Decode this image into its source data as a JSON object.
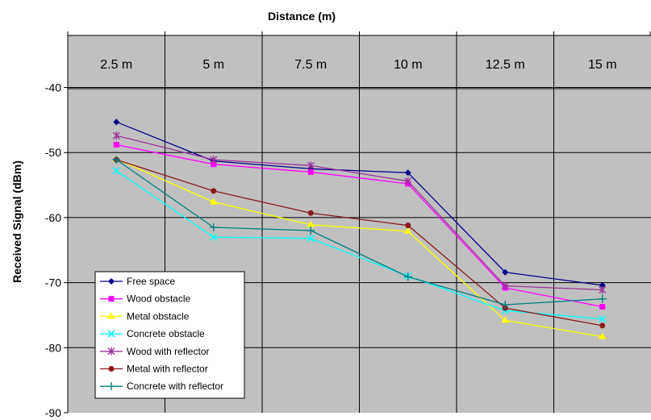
{
  "chart_data": {
    "type": "line",
    "title": "Distance (m)",
    "xlabel": "",
    "ylabel": "Received Signal (dBm)",
    "categories": [
      "2.5 m",
      "5 m",
      "7.5 m",
      "10 m",
      "12.5 m",
      "15 m"
    ],
    "ylim": [
      -90,
      -32
    ],
    "yticks": [
      -40,
      -50,
      -60,
      -70,
      -80,
      -90
    ],
    "grid": true,
    "legend": "bottom-left",
    "series": [
      {
        "name": "Free space",
        "color": "#00008B",
        "marker": "diamond",
        "values": [
          -45.3,
          -51.3,
          -52.5,
          -53.1,
          -68.4,
          -70.4
        ]
      },
      {
        "name": "Wood obstacle",
        "color": "#FF00FF",
        "marker": "square",
        "values": [
          -48.8,
          -51.8,
          -53.0,
          -54.8,
          -70.8,
          -73.7
        ]
      },
      {
        "name": "Metal obstacle",
        "color": "#FFFF00",
        "marker": "triangle",
        "values": [
          -51.0,
          -57.6,
          -61.1,
          -62.1,
          -75.8,
          -78.3
        ]
      },
      {
        "name": "Concrete obstacle",
        "color": "#00FFFF",
        "marker": "x",
        "values": [
          -52.8,
          -63.0,
          -63.2,
          -69.0,
          -74.3,
          -75.6
        ]
      },
      {
        "name": "Wood with reflector",
        "color": "#993399",
        "marker": "star",
        "values": [
          -47.4,
          -51.1,
          -52.0,
          -54.4,
          -70.5,
          -71.1
        ]
      },
      {
        "name": "Metal with reflector",
        "color": "#8B1A1A",
        "marker": "circle",
        "values": [
          -51.1,
          -55.9,
          -59.3,
          -61.2,
          -73.9,
          -76.6
        ]
      },
      {
        "name": "Concrete with reflector",
        "color": "#008080",
        "marker": "plus",
        "values": [
          -51.1,
          -61.5,
          -62.0,
          -69.1,
          -73.4,
          -72.5
        ]
      }
    ]
  }
}
